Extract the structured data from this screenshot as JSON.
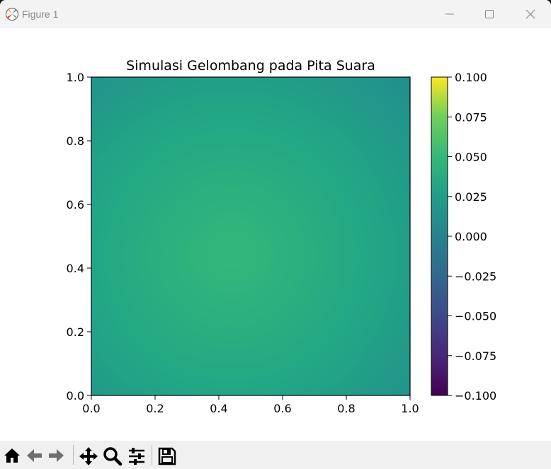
{
  "window": {
    "title": "Figure 1",
    "icons": [
      "matplotlib-logo-icon",
      "minimize-icon",
      "maximize-icon",
      "close-icon"
    ]
  },
  "toolbar": {
    "icons": [
      "home-icon",
      "back-arrow-icon",
      "forward-arrow-icon",
      "pan-move-icon",
      "zoom-magnifier-icon",
      "configure-subplots-icon",
      "save-floppy-icon"
    ]
  },
  "chart_data": {
    "type": "heatmap",
    "title": "Simulasi Gelombang pada Pita Suara",
    "xlabel": "",
    "ylabel": "",
    "xlim": [
      0.0,
      1.0
    ],
    "ylim": [
      0.0,
      1.0
    ],
    "x_ticks": [
      "0.0",
      "0.2",
      "0.4",
      "0.6",
      "0.8",
      "1.0"
    ],
    "y_ticks": [
      "0.0",
      "0.2",
      "0.4",
      "0.6",
      "0.8",
      "1.0"
    ],
    "colormap": "viridis",
    "color_range": [
      -0.1,
      0.1
    ],
    "colorbar_ticks": [
      "0.100",
      "0.075",
      "0.050",
      "0.025",
      "0.000",
      "−0.025",
      "−0.050",
      "−0.075",
      "−0.100"
    ],
    "field_description": "smooth radial bump: about 0.02 at center (0.5,0.5) falling to about 0.0 at edges",
    "center_value": 0.02,
    "edge_value": 0.0,
    "grid": false
  }
}
